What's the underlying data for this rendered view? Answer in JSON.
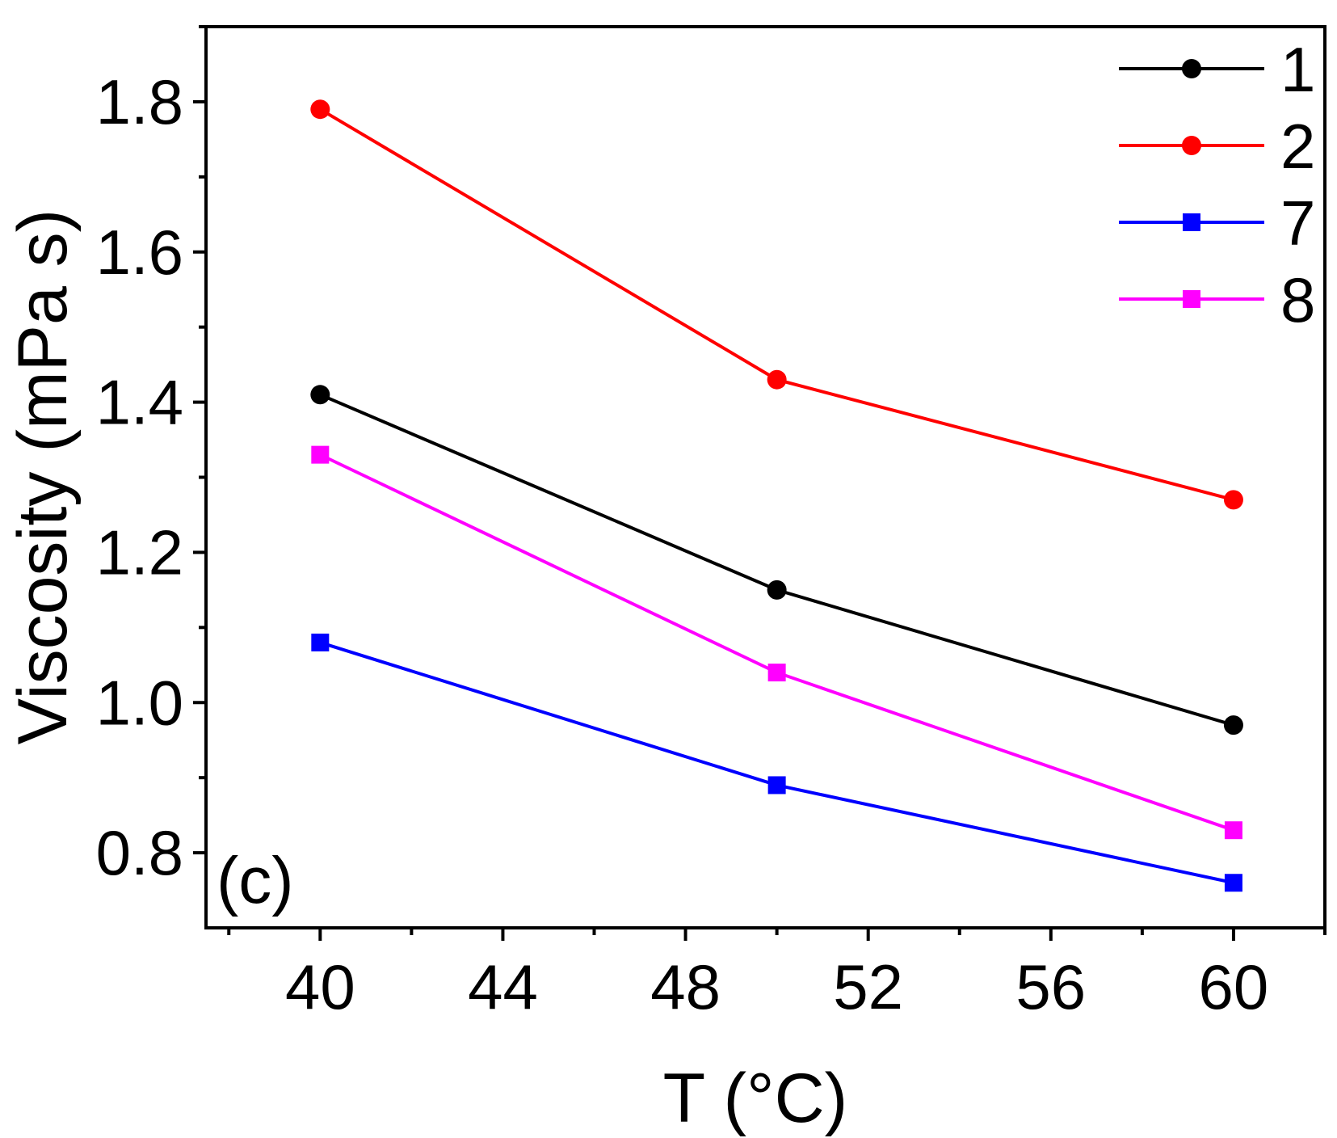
{
  "chart_data": {
    "type": "line",
    "title": "",
    "panel_label": "(c)",
    "xlabel": "T (°C)",
    "ylabel": "Viscosity (mPa s)",
    "xlim": [
      37.5,
      62.0
    ],
    "ylim": [
      0.7,
      1.9
    ],
    "x_major_ticks": [
      40,
      44,
      48,
      52,
      56,
      60
    ],
    "x_tick_labels": [
      "40",
      "44",
      "48",
      "52",
      "56",
      "60"
    ],
    "y_major_ticks": [
      0.8,
      1.0,
      1.2,
      1.4,
      1.6,
      1.8
    ],
    "y_tick_labels": [
      "0.8",
      "1.0",
      "1.2",
      "1.4",
      "1.6",
      "1.8"
    ],
    "grid": false,
    "legend_position": "top-right",
    "series": [
      {
        "name": "1",
        "color": "#000000",
        "marker": "circle",
        "x": [
          40,
          50,
          60
        ],
        "y": [
          1.41,
          1.15,
          0.97
        ]
      },
      {
        "name": "2",
        "color": "#ff0000",
        "marker": "circle",
        "x": [
          40,
          50,
          60
        ],
        "y": [
          1.79,
          1.43,
          1.27
        ]
      },
      {
        "name": "7",
        "color": "#0000ff",
        "marker": "square",
        "x": [
          40,
          50,
          60
        ],
        "y": [
          1.08,
          0.89,
          0.76
        ]
      },
      {
        "name": "8",
        "color": "#ff00ff",
        "marker": "square",
        "x": [
          40,
          50,
          60
        ],
        "y": [
          1.33,
          1.04,
          0.83
        ]
      }
    ]
  }
}
